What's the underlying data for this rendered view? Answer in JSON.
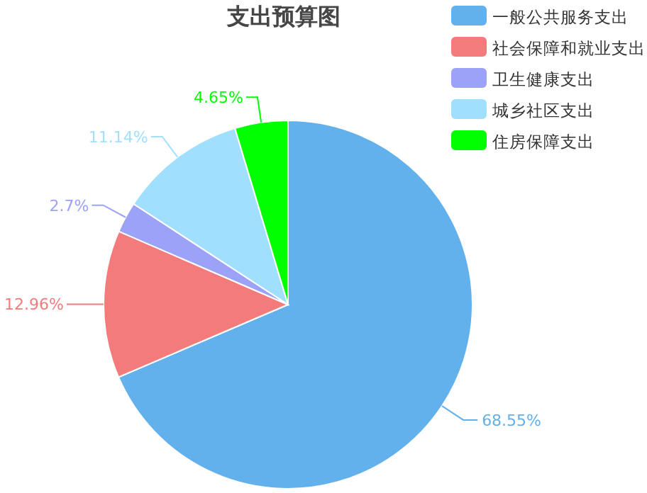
{
  "chart_data": {
    "type": "pie",
    "title": "支出预算图",
    "categories": [
      "一般公共服务支出",
      "社会保障和就业支出",
      "卫生健康支出",
      "城乡社区支出",
      "住房保障支出"
    ],
    "values": [
      68.55,
      12.96,
      2.7,
      11.14,
      4.65
    ],
    "value_labels": [
      "68.55%",
      "12.96%",
      "2.7%",
      "11.14%",
      "4.65%"
    ],
    "colors": [
      "#62b0ec",
      "#f47b7b",
      "#9ba2f7",
      "#a1dffe",
      "#00ff00"
    ],
    "legend": "top right"
  }
}
